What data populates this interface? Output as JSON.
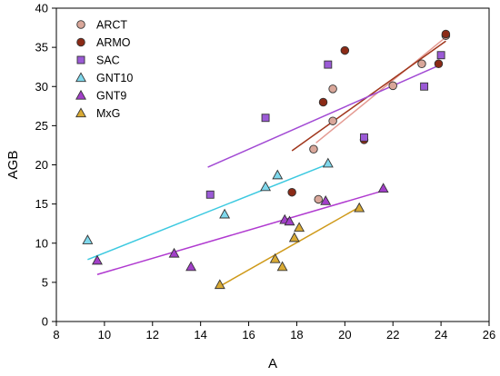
{
  "chart_data": {
    "type": "scatter",
    "xlabel": "A",
    "ylabel": "AGB",
    "xlim": [
      8,
      26
    ],
    "ylim": [
      0,
      40
    ],
    "xticks": [
      8,
      10,
      12,
      14,
      16,
      18,
      20,
      22,
      24,
      26
    ],
    "yticks": [
      0,
      5,
      10,
      15,
      20,
      25,
      30,
      35,
      40
    ],
    "grid": false,
    "legend_position": "top-left",
    "series": [
      {
        "name": "ARCT",
        "marker": "circle",
        "color": "#d9a79a",
        "points": [
          [
            18.7,
            22.0
          ],
          [
            18.9,
            15.6
          ],
          [
            19.5,
            25.6
          ],
          [
            19.5,
            29.7
          ],
          [
            22.0,
            30.1
          ],
          [
            23.2,
            32.9
          ],
          [
            24.2,
            36.5
          ]
        ],
        "trendline": {
          "color": "#e49a92",
          "x": [
            18.8,
            24.2
          ],
          "y": [
            22.8,
            36.3
          ]
        }
      },
      {
        "name": "ARMO",
        "marker": "circle",
        "color": "#8b2a16",
        "points": [
          [
            17.8,
            16.5
          ],
          [
            19.1,
            28.0
          ],
          [
            20.0,
            34.6
          ],
          [
            20.8,
            23.2
          ],
          [
            23.9,
            32.9
          ],
          [
            24.2,
            36.7
          ]
        ],
        "trendline": {
          "color": "#a0361c",
          "x": [
            17.8,
            24.2
          ],
          "y": [
            21.8,
            35.8
          ]
        }
      },
      {
        "name": "SAC",
        "marker": "square",
        "color": "#9b5ad6",
        "points": [
          [
            14.4,
            16.2
          ],
          [
            16.7,
            26.0
          ],
          [
            19.3,
            32.8
          ],
          [
            20.8,
            23.5
          ],
          [
            23.3,
            30.0
          ],
          [
            24.0,
            34.0
          ]
        ],
        "trendline": {
          "color": "#a24ad4",
          "x": [
            14.3,
            24.0
          ],
          "y": [
            19.7,
            32.8
          ]
        }
      },
      {
        "name": "GNT10",
        "marker": "triangle",
        "color": "#7fd8ec",
        "points": [
          [
            9.3,
            10.4
          ],
          [
            15.0,
            13.7
          ],
          [
            16.7,
            17.2
          ],
          [
            17.2,
            18.7
          ],
          [
            19.3,
            20.2
          ]
        ],
        "trendline": {
          "color": "#3cc9e0",
          "x": [
            9.3,
            19.3
          ],
          "y": [
            7.9,
            20.1
          ]
        }
      },
      {
        "name": "GNT9",
        "marker": "triangle",
        "color": "#a23fc9",
        "points": [
          [
            9.7,
            7.8
          ],
          [
            12.9,
            8.7
          ],
          [
            13.6,
            7.0
          ],
          [
            17.5,
            13.0
          ],
          [
            17.7,
            12.8
          ],
          [
            19.2,
            15.4
          ],
          [
            21.6,
            17.0
          ]
        ],
        "trendline": {
          "color": "#b03ad0",
          "x": [
            9.7,
            21.6
          ],
          "y": [
            6.0,
            16.7
          ]
        }
      },
      {
        "name": "MxG",
        "marker": "triangle",
        "color": "#d9aa34",
        "points": [
          [
            14.8,
            4.7
          ],
          [
            17.1,
            8.0
          ],
          [
            17.4,
            7.0
          ],
          [
            17.9,
            10.7
          ],
          [
            18.1,
            12.0
          ],
          [
            20.6,
            14.5
          ]
        ],
        "trendline": {
          "color": "#cf9a1a",
          "x": [
            14.8,
            20.6
          ],
          "y": [
            4.5,
            14.6
          ]
        }
      }
    ]
  }
}
